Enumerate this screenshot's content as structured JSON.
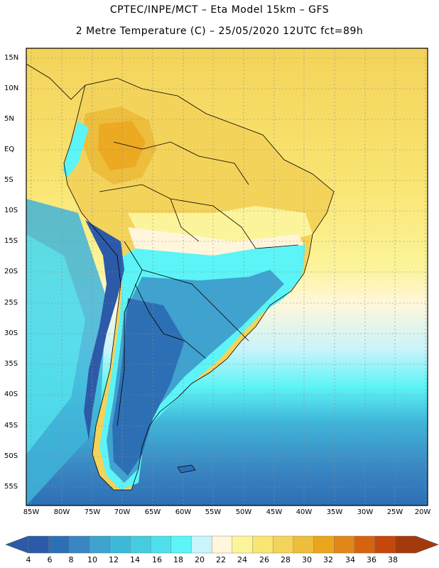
{
  "header": {
    "line1": "CPTEC/INPE/MCT –   Eta Model 15km – GFS",
    "line2": "2 Metre Temperature (C) – 25/05/2020 12UTC fct=89h"
  },
  "map": {
    "lat_labels": [
      "15N",
      "10N",
      "5N",
      "EQ",
      "5S",
      "10S",
      "15S",
      "20S",
      "25S",
      "30S",
      "35S",
      "40S",
      "45S",
      "50S",
      "55S"
    ],
    "lon_labels": [
      "85W",
      "80W",
      "75W",
      "70W",
      "65W",
      "60W",
      "55W",
      "50W",
      "45W",
      "40W",
      "35W",
      "30W",
      "25W",
      "20W"
    ]
  },
  "colorbar": {
    "labels": [
      "4",
      "6",
      "8",
      "10",
      "12",
      "14",
      "16",
      "18",
      "20",
      "22",
      "24",
      "26",
      "28",
      "30",
      "32",
      "34",
      "36",
      "38"
    ],
    "colors": [
      "#2c5aa8",
      "#2d6fb4",
      "#3a86c2",
      "#3fa2cf",
      "#3cb8d8",
      "#45cce0",
      "#4ee0ea",
      "#5cf4f6",
      "#c8f4fb",
      "#fff6dc",
      "#fcf49a",
      "#f9e572",
      "#f4d35a",
      "#edbd3c",
      "#eaa51c",
      "#e1871a",
      "#d46410",
      "#c4470c",
      "#a33a0c"
    ]
  }
}
